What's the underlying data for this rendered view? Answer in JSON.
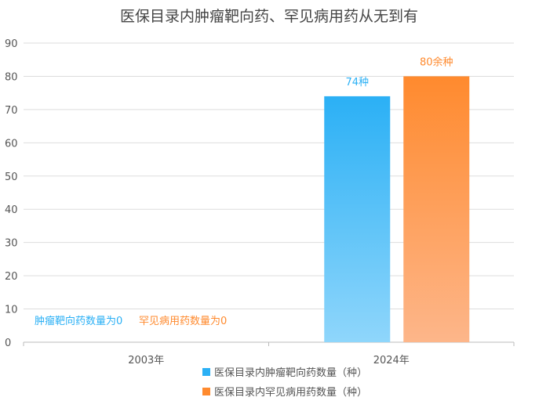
{
  "chart_data": {
    "type": "bar",
    "title": "医保目录内肿瘤靶向药、罕见病用药从无到有",
    "categories": [
      "2003年",
      "2024年"
    ],
    "series": [
      {
        "name": "医保目录内肿瘤靶向药数量（种）",
        "values": [
          0,
          74
        ],
        "labels": [
          "肿瘤靶向药数量为0",
          "74种"
        ],
        "color_top": "#2bb0f5",
        "color_bottom": "#8fd6fb"
      },
      {
        "name": "医保目录内罕见病用药数量（种）",
        "values": [
          0,
          80
        ],
        "labels": [
          "罕见病用药数量为0",
          "80余种"
        ],
        "color_top": "#ff8a2e",
        "color_bottom": "#fdb68a"
      }
    ],
    "ylim": [
      0,
      90
    ],
    "yticks": [
      0,
      10,
      20,
      30,
      40,
      50,
      60,
      70,
      80,
      90
    ],
    "grid": true,
    "legend_position": "bottom"
  }
}
